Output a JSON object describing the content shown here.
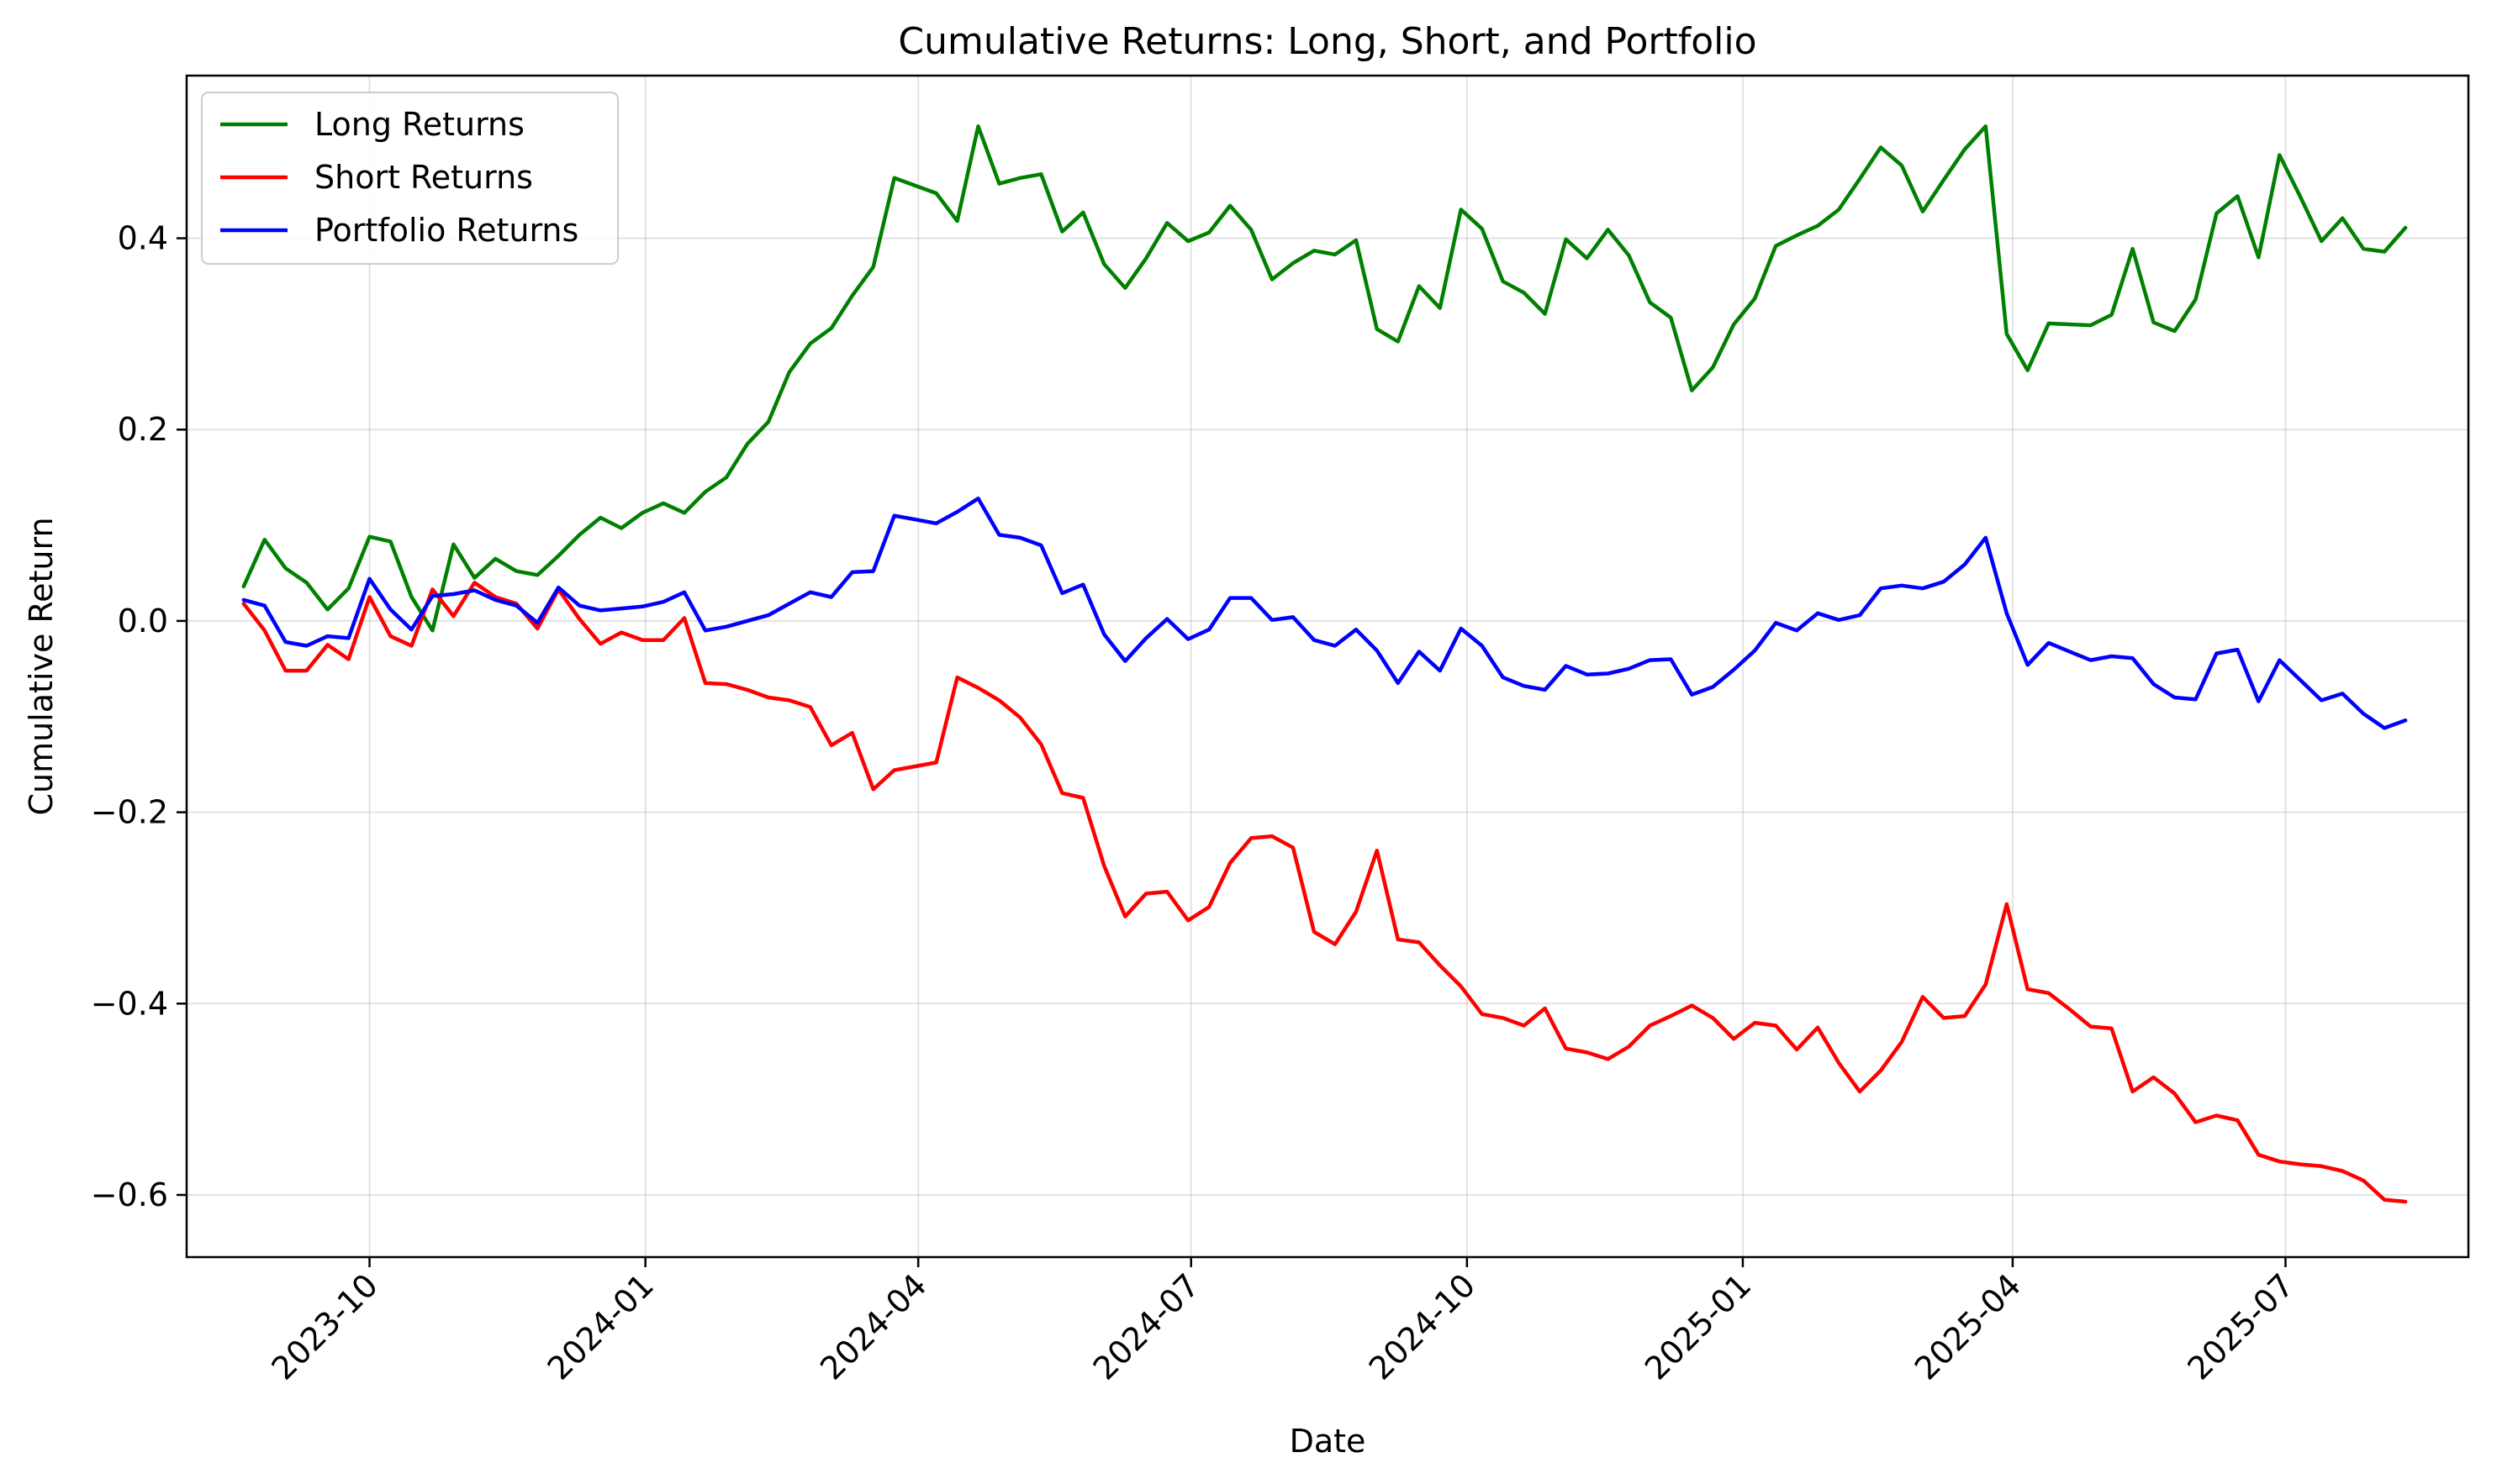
{
  "chart_data": {
    "type": "line",
    "title": "Cumulative Returns: Long, Short, and Portfolio",
    "xlabel": "Date",
    "ylabel": "Cumulative Return",
    "xlim": [
      "2023-08-01",
      "2025-08-31"
    ],
    "ylim": [
      -0.665,
      0.57
    ],
    "grid": true,
    "legend_position": "upper-left",
    "x_ticks": [
      "2023-10",
      "2024-01",
      "2024-04",
      "2024-07",
      "2024-10",
      "2025-01",
      "2025-04",
      "2025-07"
    ],
    "y_ticks": [
      -0.6,
      -0.4,
      -0.2,
      0.0,
      0.2,
      0.4
    ],
    "y_tick_labels": [
      "−0.6",
      "−0.4",
      "−0.2",
      "0.0",
      "0.2",
      "0.4"
    ],
    "x_start": "2023-08-20",
    "x_step_days": 7,
    "series": [
      {
        "name": "Long Returns",
        "color": "#008000",
        "values": [
          0.036,
          0.085,
          0.055,
          0.04,
          0.012,
          0.034,
          0.088,
          0.083,
          0.025,
          -0.01,
          0.08,
          0.045,
          0.065,
          0.052,
          0.048,
          0.068,
          0.09,
          0.108,
          0.097,
          0.113,
          0.123,
          0.113,
          0.135,
          0.15,
          0.185,
          0.208,
          0.26,
          0.29,
          0.306,
          0.34,
          0.37,
          0.463,
          0.455,
          0.447,
          0.418,
          0.517,
          0.457,
          0.463,
          0.467,
          0.407,
          0.427,
          0.373,
          0.348,
          0.379,
          0.416,
          0.397,
          0.406,
          0.434,
          0.409,
          0.357,
          0.374,
          0.387,
          0.383,
          0.398,
          0.305,
          0.292,
          0.35,
          0.327,
          0.43,
          0.41,
          0.355,
          0.343,
          0.321,
          0.399,
          0.379,
          0.409,
          0.382,
          0.333,
          0.317,
          0.241,
          0.265,
          0.31,
          0.337,
          0.392,
          0.403,
          0.413,
          0.43,
          0.462,
          0.495,
          0.476,
          0.428,
          0.461,
          0.493,
          0.517,
          0.3,
          0.262,
          0.311,
          0.31,
          0.309,
          0.32,
          0.389,
          0.312,
          0.303,
          0.336,
          0.426,
          0.444,
          0.38,
          0.487,
          0.443,
          0.397,
          0.421,
          0.389,
          0.386,
          0.411
        ]
      },
      {
        "name": "Short Returns",
        "color": "#ff0000",
        "values": [
          0.018,
          -0.01,
          -0.052,
          -0.052,
          -0.025,
          -0.04,
          0.025,
          -0.016,
          -0.026,
          0.033,
          0.005,
          0.04,
          0.025,
          0.018,
          -0.008,
          0.033,
          0.002,
          -0.024,
          -0.012,
          -0.02,
          -0.02,
          0.003,
          -0.065,
          -0.066,
          -0.072,
          -0.08,
          -0.083,
          -0.09,
          -0.13,
          -0.117,
          -0.176,
          -0.156,
          -0.152,
          -0.148,
          -0.059,
          -0.07,
          -0.083,
          -0.101,
          -0.129,
          -0.18,
          -0.185,
          -0.256,
          -0.309,
          -0.285,
          -0.283,
          -0.313,
          -0.299,
          -0.253,
          -0.227,
          -0.225,
          -0.237,
          -0.325,
          -0.338,
          -0.304,
          -0.24,
          -0.333,
          -0.336,
          -0.36,
          -0.382,
          -0.411,
          -0.415,
          -0.423,
          -0.405,
          -0.447,
          -0.451,
          -0.458,
          -0.445,
          -0.423,
          -0.413,
          -0.402,
          -0.415,
          -0.437,
          -0.42,
          -0.423,
          -0.448,
          -0.425,
          -0.462,
          -0.492,
          -0.47,
          -0.44,
          -0.393,
          -0.415,
          -0.413,
          -0.38,
          -0.296,
          -0.385,
          -0.389,
          -0.406,
          -0.424,
          -0.426,
          -0.492,
          -0.477,
          -0.494,
          -0.524,
          -0.517,
          -0.522,
          -0.558,
          -0.565,
          -0.568,
          -0.57,
          -0.575,
          -0.585,
          -0.605,
          -0.607
        ]
      },
      {
        "name": "Portfolio Returns",
        "color": "#0000ff",
        "values": [
          0.022,
          0.016,
          -0.022,
          -0.026,
          -0.016,
          -0.018,
          0.044,
          0.012,
          -0.009,
          0.026,
          0.028,
          0.032,
          0.022,
          0.016,
          -0.002,
          0.035,
          0.016,
          0.011,
          0.013,
          0.015,
          0.02,
          0.03,
          -0.01,
          -0.006,
          0.0,
          0.006,
          0.018,
          0.03,
          0.025,
          0.051,
          0.052,
          0.11,
          0.106,
          0.102,
          0.114,
          0.128,
          0.09,
          0.087,
          0.079,
          0.029,
          0.038,
          -0.014,
          -0.042,
          -0.018,
          0.002,
          -0.019,
          -0.009,
          0.024,
          0.024,
          0.001,
          0.004,
          -0.02,
          -0.026,
          -0.009,
          -0.031,
          -0.065,
          -0.032,
          -0.052,
          -0.008,
          -0.026,
          -0.059,
          -0.068,
          -0.072,
          -0.047,
          -0.056,
          -0.055,
          -0.05,
          -0.041,
          -0.04,
          -0.077,
          -0.069,
          -0.051,
          -0.031,
          -0.002,
          -0.01,
          0.008,
          0.001,
          0.006,
          0.034,
          0.037,
          0.034,
          0.041,
          0.059,
          0.087,
          0.008,
          -0.046,
          -0.023,
          -0.032,
          -0.041,
          -0.037,
          -0.039,
          -0.066,
          -0.08,
          -0.082,
          -0.034,
          -0.03,
          -0.084,
          -0.041,
          -0.062,
          -0.083,
          -0.076,
          -0.097,
          -0.112,
          -0.104
        ]
      }
    ]
  }
}
